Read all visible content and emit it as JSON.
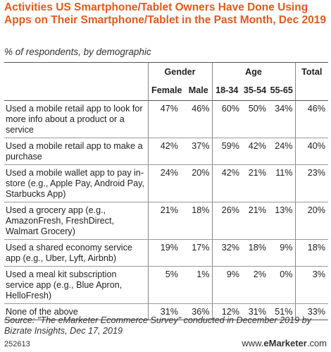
{
  "title": "Activities US Smartphone/Tablet Owners Have Done Using Apps on Their Smartphone/Tablet in the Past Month, Dec 2019",
  "subtitle": "% of respondents, by demographic",
  "headers": {
    "gender": "Gender",
    "age": "Age",
    "total": "Total",
    "female": "Female",
    "male": "Male",
    "age1": "18-34",
    "age2": "35-54",
    "age3": "55-65"
  },
  "chart_data": {
    "type": "table",
    "columns": [
      "Female",
      "Male",
      "18-34",
      "35-54",
      "55-65",
      "Total"
    ],
    "rows": [
      {
        "label": "Used a mobile retail app to look for more info about a product or a service",
        "values": [
          "47%",
          "46%",
          "60%",
          "50%",
          "34%",
          "46%"
        ]
      },
      {
        "label": "Used a mobile retail app to make a purchase",
        "values": [
          "42%",
          "37%",
          "59%",
          "42%",
          "24%",
          "40%"
        ]
      },
      {
        "label": "Used a mobile wallet app to pay in-store (e.g., Apple Pay, Android Pay, Starbucks App)",
        "values": [
          "24%",
          "20%",
          "42%",
          "21%",
          "11%",
          "23%"
        ]
      },
      {
        "label": "Used a grocery app (e.g., AmazonFresh, FreshDirect, Walmart Grocery)",
        "values": [
          "21%",
          "18%",
          "26%",
          "21%",
          "13%",
          "20%"
        ]
      },
      {
        "label": "Used a shared economy service app (e.g., Uber, Lyft, Airbnb)",
        "values": [
          "19%",
          "17%",
          "32%",
          "18%",
          "9%",
          "18%"
        ]
      },
      {
        "label": "Used a meal kit subscription service app (e.g., Blue Apron, HelloFresh)",
        "values": [
          "5%",
          "1%",
          "9%",
          "2%",
          "0%",
          "3%"
        ]
      },
      {
        "label": "None of the above",
        "values": [
          "31%",
          "36%",
          "12%",
          "31%",
          "51%",
          "33%"
        ]
      }
    ]
  },
  "source": "Source: \"The eMarketer Ecommerce Survey\" conducted in December 2019 by Bizrate Insights, Dec 17, 2019",
  "chart_id": "252613",
  "brand": {
    "prefix": "www.",
    "name": "eMarketer",
    "suffix": ".com"
  }
}
